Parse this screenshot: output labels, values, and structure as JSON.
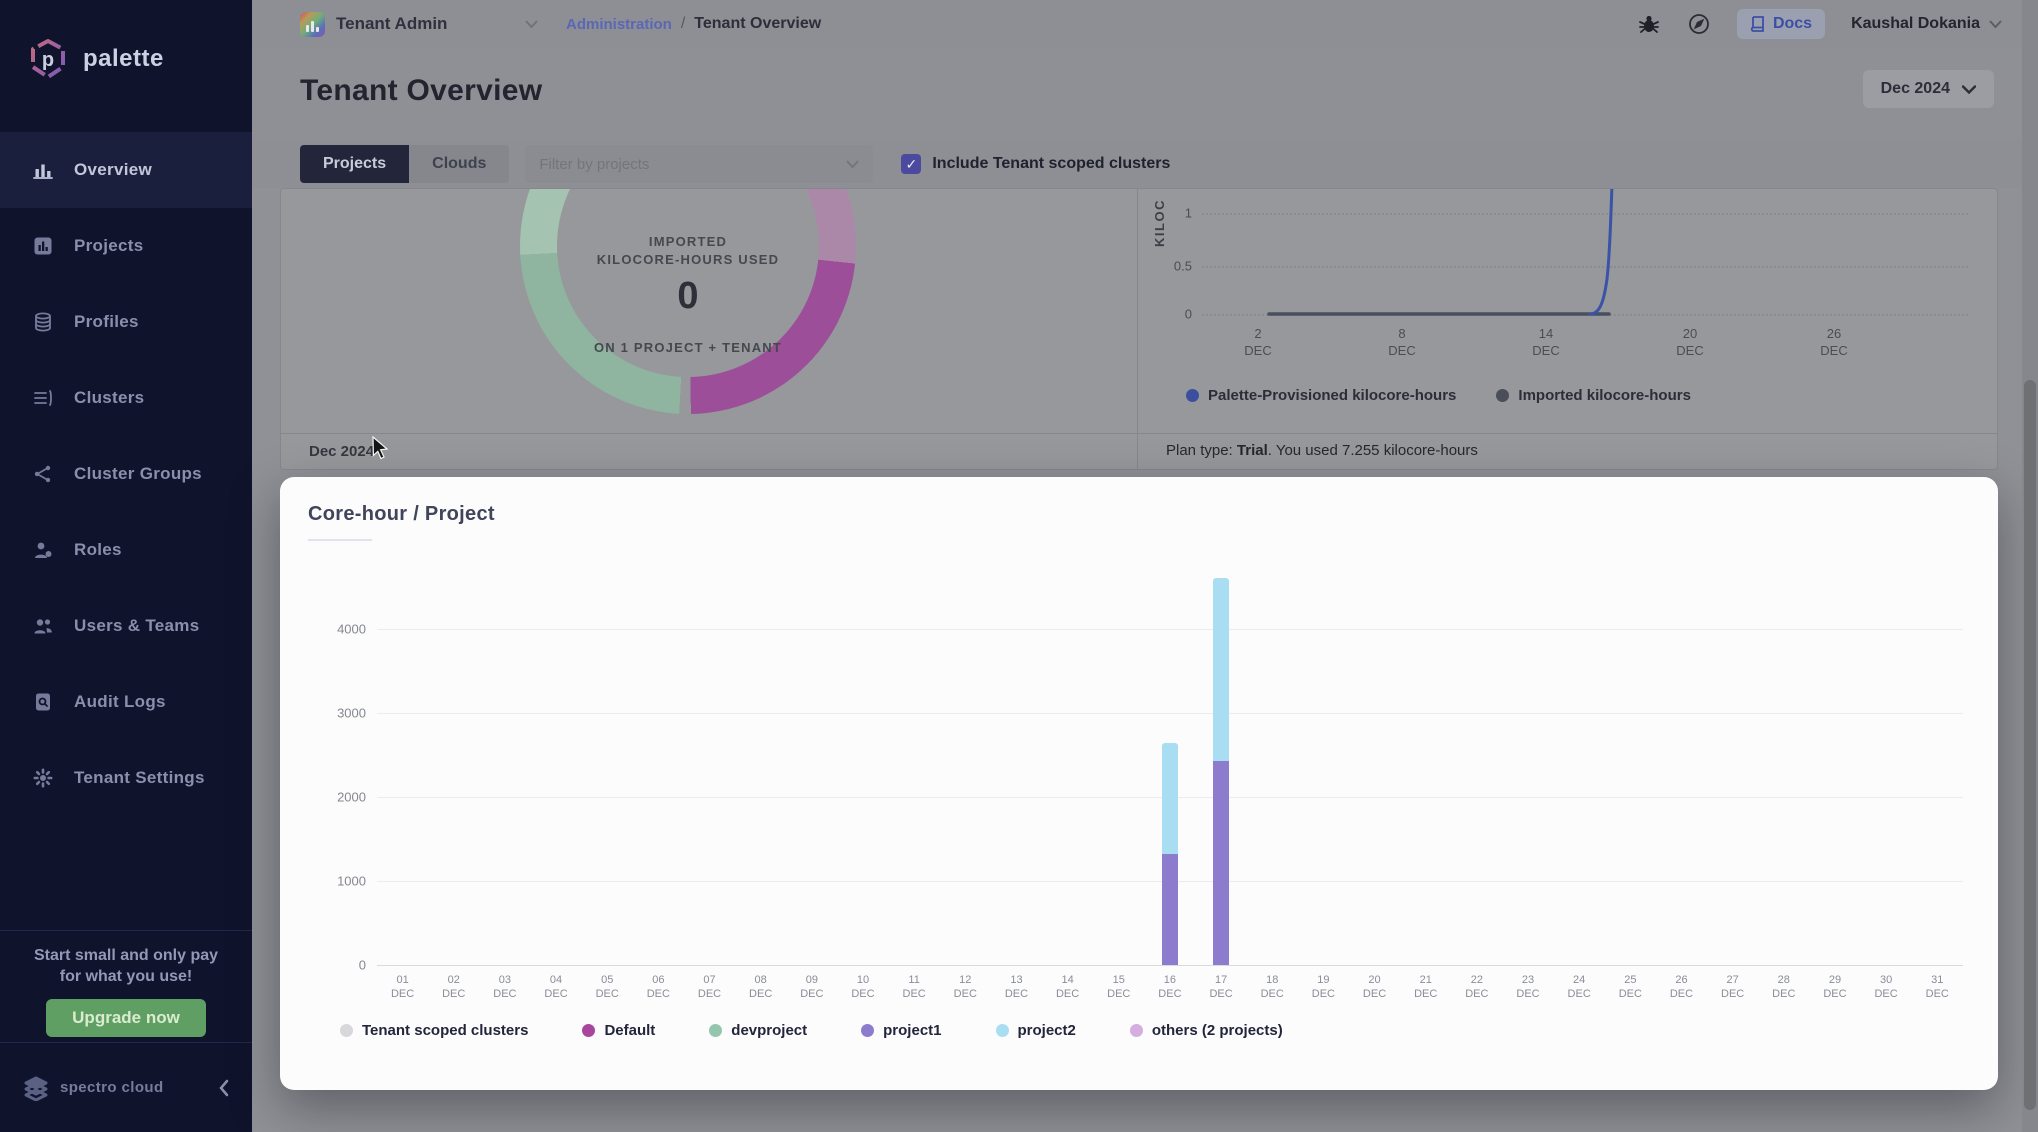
{
  "sidebar": {
    "logo_label": "palette",
    "nav_items": [
      {
        "label": "Overview",
        "icon": "overview-icon",
        "active": true
      },
      {
        "label": "Projects",
        "icon": "projects-icon",
        "active": false
      },
      {
        "label": "Profiles",
        "icon": "profiles-icon",
        "active": false
      },
      {
        "label": "Clusters",
        "icon": "clusters-icon",
        "active": false
      },
      {
        "label": "Cluster Groups",
        "icon": "cluster-groups-icon",
        "active": false
      },
      {
        "label": "Roles",
        "icon": "roles-icon",
        "active": false
      },
      {
        "label": "Users & Teams",
        "icon": "users-teams-icon",
        "active": false
      },
      {
        "label": "Audit Logs",
        "icon": "audit-logs-icon",
        "active": false
      },
      {
        "label": "Tenant Settings",
        "icon": "tenant-settings-icon",
        "active": false
      }
    ],
    "promo": {
      "line1": "Start small and only pay",
      "line2": "for what you use!",
      "button_label": "Upgrade now"
    },
    "footer_brand": "spectro cloud"
  },
  "topbar": {
    "scope_label": "Tenant Admin",
    "breadcrumb_parent": "Administration",
    "breadcrumb_separator": "/",
    "breadcrumb_current": "Tenant Overview",
    "docs_label": "Docs",
    "user_name": "Kaushal Dokania"
  },
  "page_header": {
    "title": "Tenant Overview",
    "period_button_label": "Dec 2024"
  },
  "filter_bar": {
    "tabs": [
      {
        "label": "Projects",
        "active": true
      },
      {
        "label": "Clouds",
        "active": false
      }
    ],
    "filter_placeholder": "Filter by projects",
    "checkbox_label": "Include Tenant scoped clusters",
    "checkbox_checked": true
  },
  "usage_card": {
    "clipped_value": "7.255",
    "caption_line1": "IMPORTED",
    "caption_line2": "KILOCORE-HOURS USED",
    "value": "0",
    "subcaption": "ON 1 PROJECT + TENANT",
    "footer_period_label": "Dec 2024",
    "donut_colors": {
      "teal_light": "#a5c3b1",
      "teal": "#8fb49f",
      "purple": "#9c4f98",
      "purple_light": "#ab88a8"
    }
  },
  "kilocore_card": {
    "y_axis_label": "KILOC",
    "y_ticks": [
      "1",
      "0.5",
      "0"
    ],
    "x_ticks": [
      {
        "day": "2",
        "month": "DEC"
      },
      {
        "day": "8",
        "month": "DEC"
      },
      {
        "day": "14",
        "month": "DEC"
      },
      {
        "day": "20",
        "month": "DEC"
      },
      {
        "day": "26",
        "month": "DEC"
      }
    ],
    "legend": [
      {
        "label": "Palette-Provisioned kilocore-hours",
        "color": "#3b4f9e"
      },
      {
        "label": "Imported kilocore-hours",
        "color": "#4a4e59"
      }
    ],
    "plan_prefix": "Plan type: ",
    "plan_type": "Trial",
    "plan_suffix": ". You used 7.255 kilocore-hours"
  },
  "modal": {
    "title": "Core-hour / Project",
    "y_ticks": [
      4000,
      3000,
      2000,
      1000,
      0
    ],
    "legend": [
      {
        "label": "Tenant scoped clusters",
        "color": "#d8d8dc"
      },
      {
        "label": "Default",
        "color": "#a8459c"
      },
      {
        "label": "devproject",
        "color": "#93c6ad"
      },
      {
        "label": "project1",
        "color": "#8d7ccd"
      },
      {
        "label": "project2",
        "color": "#a9def2"
      },
      {
        "label": "others (2 projects)",
        "color": "#d3aede"
      }
    ]
  },
  "chart_data": [
    {
      "type": "pie",
      "title": "Imported kilocore-hours used (donut)",
      "center_value": 0,
      "center_text": "IMPORTED KILOCORE-HOURS USED 0 ON 1 PROJECT + TENANT",
      "slices": [
        {
          "label": "teal segment (left half)",
          "value": 50
        },
        {
          "label": "purple segment (right half)",
          "value": 50
        }
      ]
    },
    {
      "type": "line",
      "title": "Kilocore-hours (Dec 2024)",
      "x": [
        "2 DEC",
        "8 DEC",
        "14 DEC",
        "20 DEC",
        "26 DEC"
      ],
      "ylim": [
        0,
        1
      ],
      "series": [
        {
          "name": "Palette-Provisioned kilocore-hours",
          "description": "flat at 0 until 16 Dec, rises sharply off-scale on 17 Dec; total used 7.255",
          "x_days": [
            2,
            8,
            14,
            15,
            16,
            17
          ],
          "values": [
            0,
            0,
            0,
            0,
            0.1,
            1
          ]
        },
        {
          "name": "Imported kilocore-hours",
          "x_days": [
            2,
            8,
            14,
            15,
            16,
            17
          ],
          "values": [
            0,
            0,
            0,
            0,
            0,
            0
          ]
        }
      ]
    },
    {
      "type": "bar",
      "stacked": true,
      "title": "Core-hour / Project",
      "xlabel": "",
      "ylabel": "",
      "ylim": [
        0,
        4600
      ],
      "month_suffix": "DEC",
      "categories": [
        "01",
        "02",
        "03",
        "04",
        "05",
        "06",
        "07",
        "08",
        "09",
        "10",
        "11",
        "12",
        "13",
        "14",
        "15",
        "16",
        "17",
        "18",
        "19",
        "20",
        "21",
        "22",
        "23",
        "24",
        "25",
        "26",
        "27",
        "28",
        "29",
        "30",
        "31"
      ],
      "series": [
        {
          "name": "Tenant scoped clusters",
          "values": [
            0,
            0,
            0,
            0,
            0,
            0,
            0,
            0,
            0,
            0,
            0,
            0,
            0,
            0,
            0,
            0,
            0,
            0,
            0,
            0,
            0,
            0,
            0,
            0,
            0,
            0,
            0,
            0,
            0,
            0,
            0
          ]
        },
        {
          "name": "Default",
          "values": [
            0,
            0,
            0,
            0,
            0,
            0,
            0,
            0,
            0,
            0,
            0,
            0,
            0,
            0,
            0,
            0,
            0,
            0,
            0,
            0,
            0,
            0,
            0,
            0,
            0,
            0,
            0,
            0,
            0,
            0,
            0
          ]
        },
        {
          "name": "devproject",
          "values": [
            0,
            0,
            0,
            0,
            0,
            0,
            0,
            0,
            0,
            0,
            0,
            0,
            0,
            0,
            0,
            0,
            0,
            0,
            0,
            0,
            0,
            0,
            0,
            0,
            0,
            0,
            0,
            0,
            0,
            0,
            0
          ]
        },
        {
          "name": "project1",
          "values": [
            0,
            0,
            0,
            0,
            0,
            0,
            0,
            0,
            0,
            0,
            0,
            0,
            0,
            0,
            0,
            1320,
            2430,
            0,
            0,
            0,
            0,
            0,
            0,
            0,
            0,
            0,
            0,
            0,
            0,
            0,
            0
          ]
        },
        {
          "name": "project2",
          "values": [
            0,
            0,
            0,
            0,
            0,
            0,
            0,
            0,
            0,
            0,
            0,
            0,
            0,
            0,
            0,
            1320,
            2180,
            0,
            0,
            0,
            0,
            0,
            0,
            0,
            0,
            0,
            0,
            0,
            0,
            0,
            0
          ]
        },
        {
          "name": "others (2 projects)",
          "values": [
            0,
            0,
            0,
            0,
            0,
            0,
            0,
            0,
            0,
            0,
            0,
            0,
            0,
            0,
            0,
            0,
            0,
            0,
            0,
            0,
            0,
            0,
            0,
            0,
            0,
            0,
            0,
            0,
            0,
            0,
            0
          ]
        }
      ]
    }
  ]
}
